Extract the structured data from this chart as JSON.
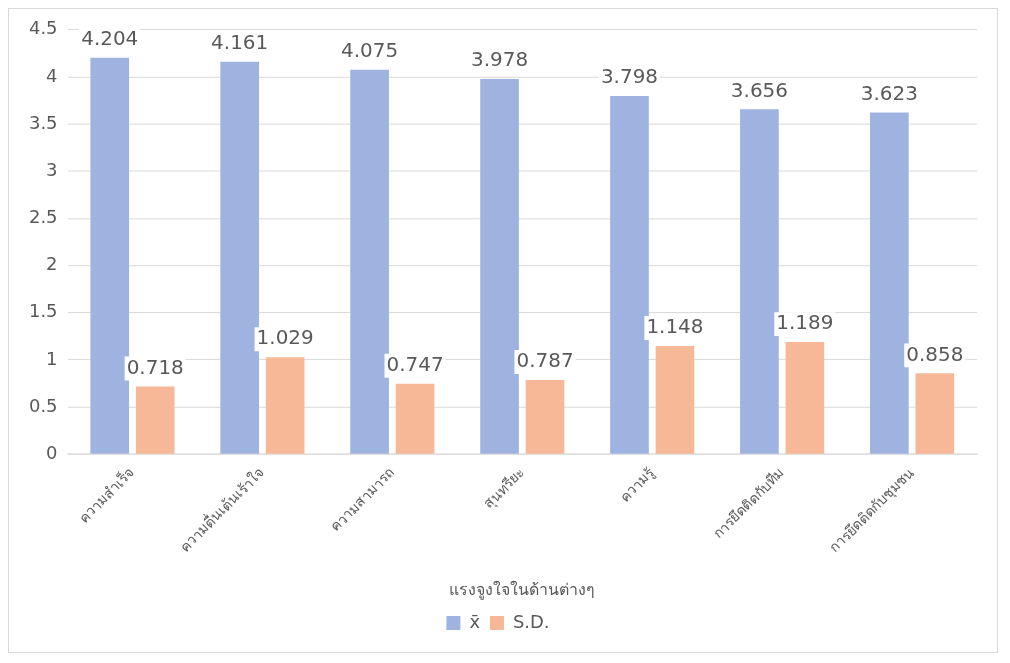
{
  "chart_data": {
    "type": "bar",
    "xlabel": "แรงจูงใจในด้านต่างๆ",
    "categories": [
      "ความสำเร็จ",
      "ความตื่นเต้นเร้าใจ",
      "ความสามารถ",
      "สุนทรียะ",
      "ความรู้",
      "การยึดติดกับทีม",
      "การยึดติดกับชุมชน"
    ],
    "series": [
      {
        "name": "x̄",
        "color": "#9fb3e0",
        "values": [
          4.204,
          4.161,
          4.075,
          3.978,
          3.798,
          3.656,
          3.623
        ]
      },
      {
        "name": "S.D.",
        "color": "#f6b896",
        "values": [
          0.718,
          1.029,
          0.747,
          0.787,
          1.148,
          1.189,
          0.858
        ]
      }
    ],
    "ylim": [
      0,
      4.5
    ],
    "yticks": [
      0,
      0.5,
      1,
      1.5,
      2,
      2.5,
      3,
      3.5,
      4,
      4.5
    ],
    "grid": "y",
    "legend": "bottom",
    "data_labels": true
  }
}
